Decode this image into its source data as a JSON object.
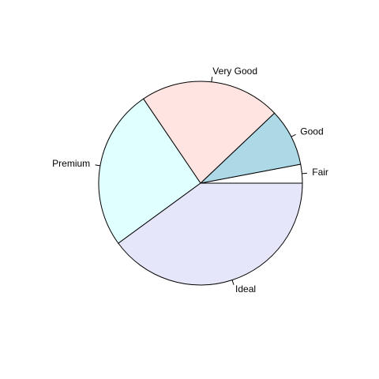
{
  "chart_data": {
    "type": "pie",
    "title": "",
    "categories": [
      "Fair",
      "Good",
      "Very Good",
      "Premium",
      "Ideal"
    ],
    "values": [
      1610,
      4906,
      12082,
      13791,
      21551
    ],
    "colors": [
      "#ffffff",
      "#add8e6",
      "#ffe4e1",
      "#e0ffff",
      "#e6e6fa"
    ],
    "direction": "counterclockwise",
    "start": "3 o'clock"
  }
}
